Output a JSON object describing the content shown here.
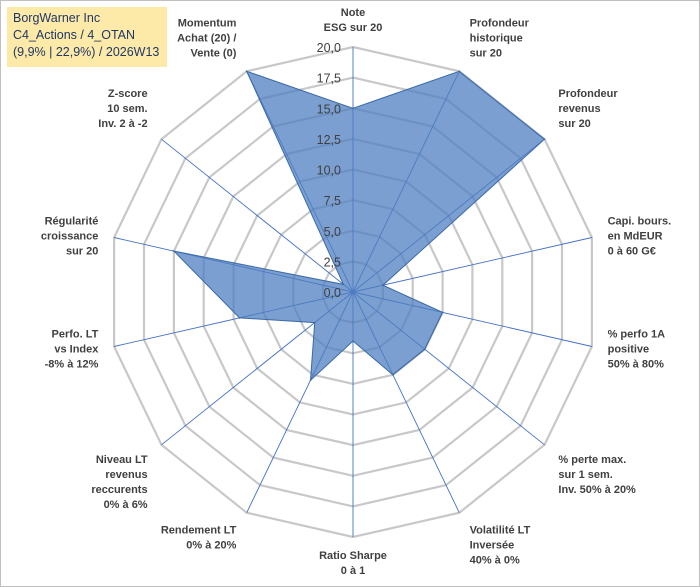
{
  "header": {
    "line1": "BorgWarner Inc",
    "line2": "C4_Actions / 4_OTAN",
    "line3": "(9,9% | 22,9%) / 2026W13"
  },
  "colors": {
    "fill": "#4f7fc0",
    "fill_opacity": 0.75,
    "stroke": "#3a6aa8",
    "grid": "#c8c8c8",
    "spoke": "#4472c4",
    "header_bg": "#fde9a8"
  },
  "chart_data": {
    "type": "radar",
    "range": [
      0,
      20
    ],
    "tick_labels": [
      "0,0",
      "2,5",
      "5,0",
      "7,5",
      "10,0",
      "12,5",
      "15,0",
      "17,5",
      "20,0"
    ],
    "categories": [
      {
        "lines": [
          "Note",
          "ESG sur 20"
        ]
      },
      {
        "lines": [
          "Profondeur",
          "historique",
          "sur 20"
        ]
      },
      {
        "lines": [
          "Profondeur",
          "revenus",
          "sur 20"
        ]
      },
      {
        "lines": [
          "Capi. bours.",
          "en MdEUR",
          "0 à 60 G€"
        ]
      },
      {
        "lines": [
          "% perfo 1A",
          "positive",
          "50% à 80%"
        ]
      },
      {
        "lines": [
          "% perte max.",
          "sur 1 sem.",
          "Inv. 50% à 20%"
        ]
      },
      {
        "lines": [
          "Volatilité LT",
          "Inversée",
          "40% à 0%"
        ]
      },
      {
        "lines": [
          "Ratio Sharpe",
          "0 à 1"
        ]
      },
      {
        "lines": [
          "Rendement LT",
          "0% à 20%"
        ]
      },
      {
        "lines": [
          "Niveau LT",
          "revenus",
          "reccurents",
          "0% à 6%"
        ]
      },
      {
        "lines": [
          "Perfo. LT",
          "vs Index",
          "-8% à 12%"
        ]
      },
      {
        "lines": [
          "Régularité",
          "croissance",
          "sur 20"
        ]
      },
      {
        "lines": [
          "Z-score",
          "10 sem.",
          "Inv. 2 à -2"
        ]
      },
      {
        "lines": [
          "Momentum",
          "Achat (20) /",
          "Vente (0)"
        ]
      }
    ],
    "values": [
      15.0,
      20.0,
      20.0,
      2.5,
      7.5,
      7.5,
      7.5,
      4.0,
      8.0,
      4.0,
      9.5,
      15.0,
      1.0,
      20.0
    ]
  }
}
